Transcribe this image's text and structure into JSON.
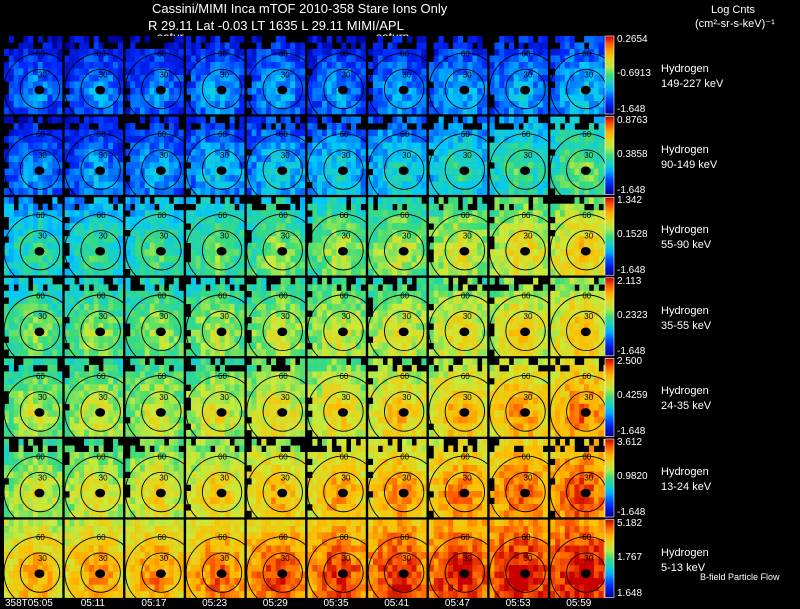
{
  "header": {
    "title": "Cassini/MIMI Inca mTOF  2010-358   Stare   Ions Only",
    "subtitle": "R      29.11 Lat -0.03 LT 1635 L        29.11  MIMI/APL",
    "object_left": "satur",
    "object_right": "saturn",
    "units_line1": "Log Cnts",
    "units_line2": "(cm²-sr-s-keV)⁻¹"
  },
  "footer": {
    "flow_label": "B-field Particle Flow"
  },
  "colors": {
    "background": "#000000",
    "text": "#ffffff",
    "contour": "#000000"
  },
  "chart_data": {
    "type": "heatmap",
    "title": "Cassini/MIMI Inca mTOF  2010-358   Stare   Ions Only",
    "x_ticks": [
      "358T05:05",
      "05:11",
      "05:17",
      "05:23",
      "05:29",
      "05:35",
      "05:41",
      "05:47",
      "05:53",
      "05:59"
    ],
    "contour_labels": [
      "30",
      "60"
    ],
    "rows": [
      {
        "species": "Hydrogen",
        "energy": "149-227 keV",
        "cb_max": "0.2654",
        "cb_mid": "-0.6913",
        "cb_min": "-1.648",
        "level": [
          0.12,
          0.13,
          0.12,
          0.15,
          0.16,
          0.14,
          0.15,
          0.17,
          0.18,
          0.2
        ]
      },
      {
        "species": "Hydrogen",
        "energy": "90-149 keV",
        "cb_max": "0.8763",
        "cb_mid": "0.3858",
        "cb_min": "-1.648",
        "level": [
          0.14,
          0.15,
          0.17,
          0.2,
          0.22,
          0.24,
          0.26,
          0.3,
          0.35,
          0.4
        ]
      },
      {
        "species": "Hydrogen",
        "energy": "55-90 keV",
        "cb_max": "1.342",
        "cb_mid": "0.1528",
        "cb_min": "-1.648",
        "level": [
          0.32,
          0.34,
          0.36,
          0.4,
          0.43,
          0.45,
          0.48,
          0.52,
          0.56,
          0.6
        ]
      },
      {
        "species": "Hydrogen",
        "energy": "35-55 keV",
        "cb_max": "2.113",
        "cb_mid": "0.2323",
        "cb_min": "-1.648",
        "level": [
          0.42,
          0.44,
          0.45,
          0.47,
          0.49,
          0.51,
          0.53,
          0.56,
          0.59,
          0.62
        ]
      },
      {
        "species": "Hydrogen",
        "energy": "24-35 keV",
        "cb_max": "2.500",
        "cb_mid": "0.4259",
        "cb_min": "-1.648",
        "level": [
          0.48,
          0.5,
          0.51,
          0.53,
          0.56,
          0.58,
          0.61,
          0.64,
          0.68,
          0.72
        ]
      },
      {
        "species": "Hydrogen",
        "energy": "13-24 keV",
        "cb_max": "3.612",
        "cb_mid": "0.9820",
        "cb_min": "-1.648",
        "level": [
          0.52,
          0.54,
          0.56,
          0.6,
          0.64,
          0.66,
          0.69,
          0.72,
          0.75,
          0.78
        ]
      },
      {
        "species": "Hydrogen",
        "energy": "5-13 keV",
        "cb_max": "5.182",
        "cb_mid": "1.767",
        "cb_min": "1.648",
        "level": [
          0.66,
          0.68,
          0.7,
          0.74,
          0.78,
          0.8,
          0.82,
          0.84,
          0.86,
          0.88
        ]
      }
    ]
  }
}
